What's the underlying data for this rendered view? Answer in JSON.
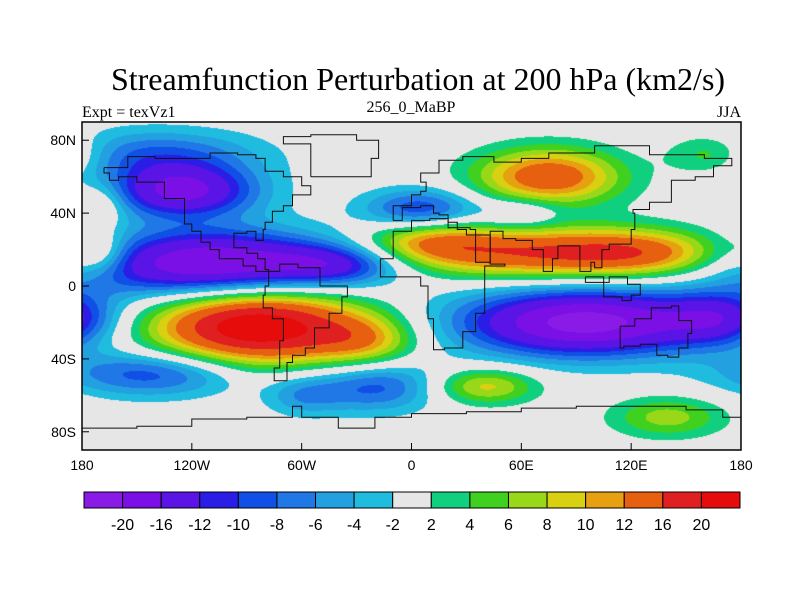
{
  "chart_data": {
    "type": "heatmap",
    "title": "Streamfunction Perturbation at 200 hPa (km2/s)",
    "left_label": "Expt = texVz1",
    "center_label": "256_0_MaBP",
    "right_label": "JJA",
    "xlabel": "",
    "ylabel": "",
    "x_ticks": [
      "180",
      "120W",
      "60W",
      "0",
      "60E",
      "120E",
      "180"
    ],
    "x_tick_values": [
      -180,
      -120,
      -60,
      0,
      60,
      120,
      180
    ],
    "y_ticks": [
      "80N",
      "40N",
      "0",
      "40S",
      "80S"
    ],
    "y_tick_values": [
      80,
      40,
      0,
      -40,
      -80
    ],
    "xlim": [
      -180,
      180
    ],
    "ylim": [
      -90,
      90
    ],
    "contour_levels": [
      -20,
      -16,
      -12,
      -10,
      -8,
      -6,
      -4,
      -2,
      2,
      4,
      6,
      8,
      10,
      12,
      16,
      20
    ],
    "colorbar_labels": [
      "-20",
      "-16",
      "-12",
      "-10",
      "-8",
      "-6",
      "-4",
      "-2",
      "2",
      "4",
      "6",
      "8",
      "10",
      "12",
      "16",
      "20"
    ],
    "colors": [
      "#8a1ae6",
      "#7a10e6",
      "#5a14e6",
      "#2a1ee6",
      "#1050e6",
      "#2078e6",
      "#22a0e0",
      "#20bce0",
      "#e6e6e6",
      "#10d080",
      "#40d020",
      "#98d818",
      "#d8d010",
      "#e6a010",
      "#e66010",
      "#e02020",
      "#e60c0c"
    ],
    "features": [
      {
        "name": "south-pacific-high",
        "lon": -85,
        "lat": -22,
        "value": 22
      },
      {
        "name": "pacific-low-north",
        "lon": -110,
        "lat": 12,
        "value": -20
      },
      {
        "name": "indian-ocean-low",
        "lon": 95,
        "lat": -22,
        "value": -21
      },
      {
        "name": "asian-high",
        "lon": 90,
        "lat": 20,
        "value": 15
      },
      {
        "name": "siberian-high",
        "lon": 75,
        "lat": 60,
        "value": 14
      },
      {
        "name": "north-pacific-low",
        "lon": -125,
        "lat": 52,
        "value": -16
      },
      {
        "name": "atlantic-low",
        "lon": 5,
        "lat": 42,
        "value": -10
      },
      {
        "name": "southern-high",
        "lon": 140,
        "lat": -72,
        "value": 5
      },
      {
        "name": "east-pacific-high",
        "lon": 165,
        "lat": 72,
        "value": 6
      }
    ]
  }
}
